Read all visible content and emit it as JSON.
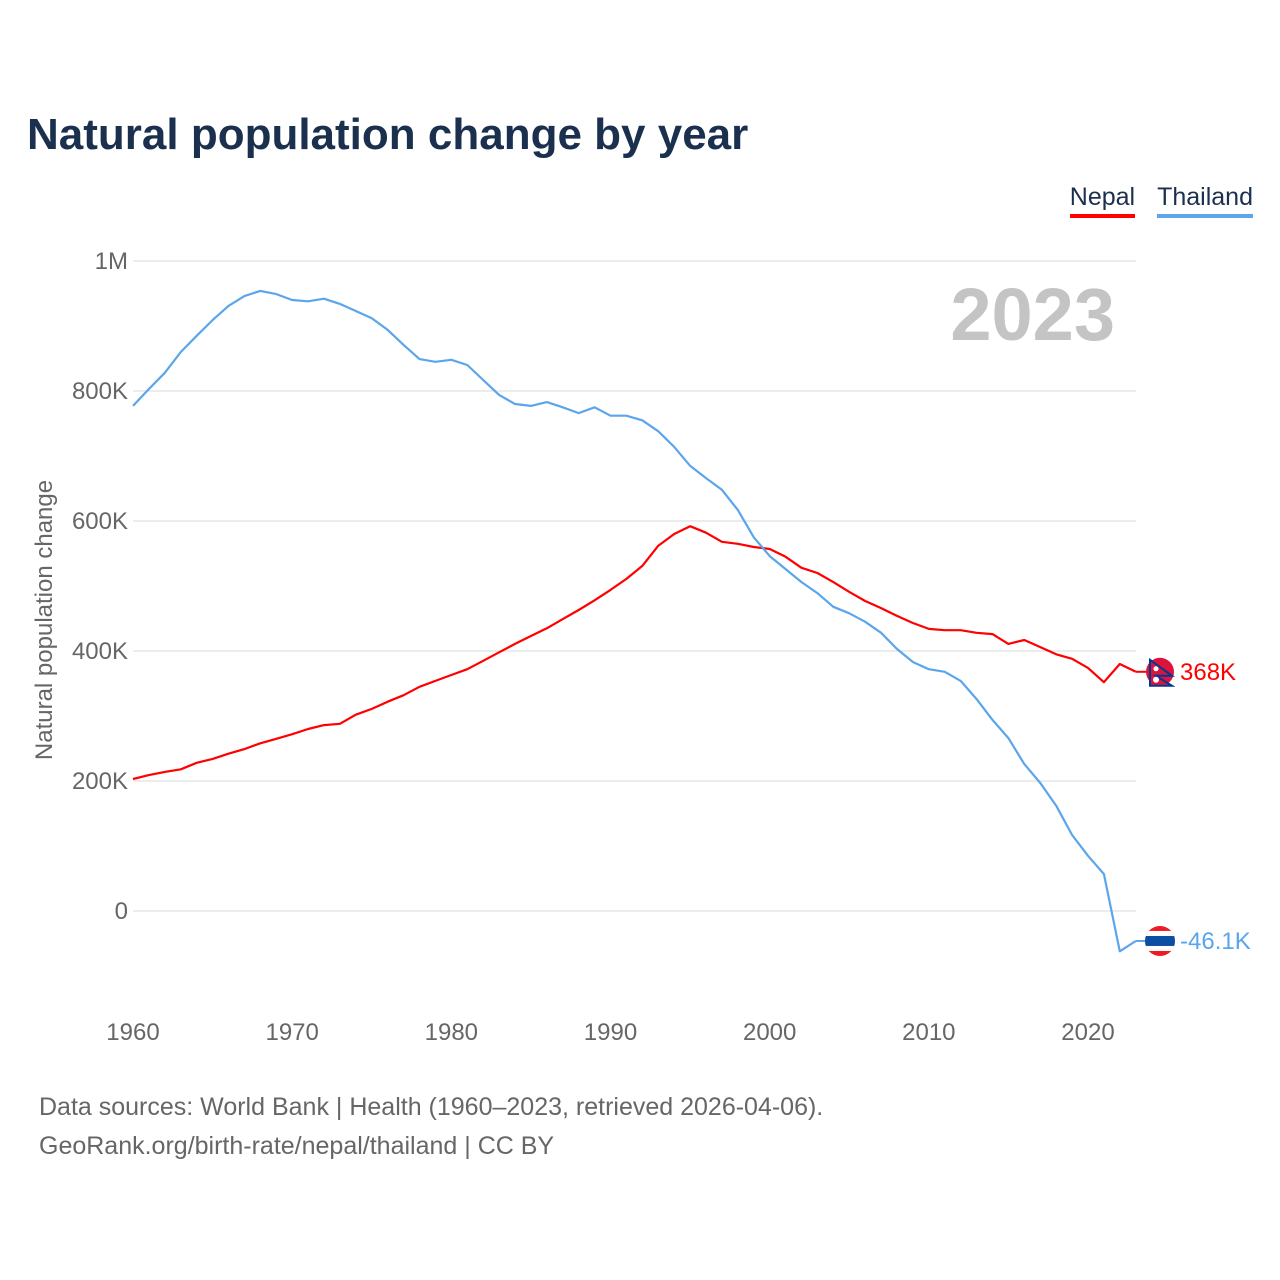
{
  "title": "Natural population change by year",
  "legend": [
    {
      "name": "Nepal",
      "color": "#ff0000"
    },
    {
      "name": "Thailand",
      "color": "#5aa5ec"
    }
  ],
  "year_label": "2023",
  "source_line1": "Data sources: World Bank | Health (1960–2023, retrieved 2026-04-06).",
  "source_line2": "GeoRank.org/birth-rate/nepal/thailand | CC BY",
  "chart_data": {
    "type": "line",
    "title": "Natural population change by year",
    "xlabel": "",
    "ylabel": "Natural population change",
    "xlim": [
      1960,
      2023
    ],
    "ylim": [
      -100000,
      1000000
    ],
    "grid": true,
    "legend_position": "top-right",
    "yticks": [
      {
        "v": 0,
        "label": "0"
      },
      {
        "v": 200000,
        "label": "200K"
      },
      {
        "v": 400000,
        "label": "400K"
      },
      {
        "v": 600000,
        "label": "600K"
      },
      {
        "v": 800000,
        "label": "800K"
      },
      {
        "v": 1000000,
        "label": "1M"
      }
    ],
    "xticks": [
      1960,
      1970,
      1980,
      1990,
      2000,
      2010,
      2020
    ],
    "x_start": 1960,
    "series": [
      {
        "name": "Nepal",
        "color": "#ff0000",
        "end_label": "368K",
        "flag": "nepal",
        "values": [
          203000,
          209000,
          214000,
          218000,
          228000,
          234000,
          242000,
          249000,
          258000,
          265000,
          272000,
          280000,
          286000,
          288000,
          302000,
          311000,
          322000,
          332000,
          345000,
          354000,
          363000,
          372000,
          385000,
          398000,
          411000,
          423000,
          435000,
          449000,
          463000,
          478000,
          494000,
          511000,
          531000,
          562000,
          580000,
          592000,
          582000,
          568000,
          565000,
          560000,
          557000,
          545000,
          528000,
          520000,
          506000,
          491000,
          477000,
          466000,
          454000,
          443000,
          434000,
          432000,
          432000,
          428000,
          426000,
          411000,
          417000,
          406000,
          395000,
          388000,
          374000,
          352000,
          380000,
          368000
        ]
      },
      {
        "name": "Thailand",
        "color": "#5aa5ec",
        "end_label": "-46.1K",
        "flag": "thailand",
        "values": [
          777000,
          803000,
          828000,
          860000,
          885000,
          909000,
          931000,
          946000,
          954000,
          949000,
          940000,
          938000,
          942000,
          934000,
          923000,
          912000,
          894000,
          871000,
          849000,
          845000,
          848000,
          840000,
          817000,
          794000,
          780000,
          777000,
          783000,
          775000,
          766000,
          775000,
          762000,
          762000,
          755000,
          738000,
          714000,
          685000,
          666000,
          648000,
          617000,
          575000,
          546000,
          526000,
          506000,
          489000,
          468000,
          458000,
          445000,
          428000,
          403000,
          383000,
          372000,
          368000,
          354000,
          326000,
          294000,
          266000,
          226000,
          197000,
          162000,
          117000,
          85000,
          57000,
          -62000,
          -46100
        ]
      }
    ]
  }
}
